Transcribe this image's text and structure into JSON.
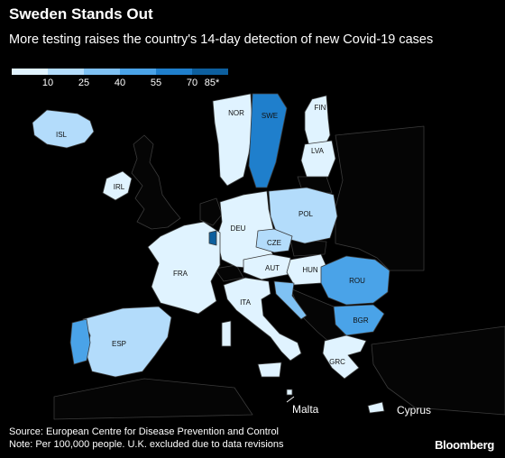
{
  "header": {
    "title": "Sweden Stands Out",
    "subtitle": "More testing raises the country's 14-day detection of new Covid-19 cases"
  },
  "legend": {
    "colors": [
      "#e0f3ff",
      "#b3dcfb",
      "#7fc1f3",
      "#4aa3e8",
      "#1f7fcc",
      "#0d5f9e"
    ],
    "ticks": [
      "10",
      "25",
      "40",
      "55",
      "70",
      "85*"
    ]
  },
  "map": {
    "background_color": "#000000",
    "land_color": "#050505",
    "country_labels": {
      "isl": "ISL",
      "irl": "IRL",
      "nor": "NOR",
      "swe": "SWE",
      "fin": "FIN",
      "lva": "LVA",
      "deu": "DEU",
      "pol": "POL",
      "cze": "CZE",
      "fra": "FRA",
      "aut": "AUT",
      "hun": "HUN",
      "rou": "ROU",
      "ita": "ITA",
      "bgr": "BGR",
      "esp": "ESP",
      "grc": "GRC"
    },
    "inset_labels": {
      "malta": "Malta",
      "cyprus": "Cyprus"
    }
  },
  "footer": {
    "source": "Source: European Centre for Disease Prevention and Control",
    "note": "Note: Per 100,000 people. U.K. excluded due to data revisions",
    "brand": "Bloomberg"
  }
}
